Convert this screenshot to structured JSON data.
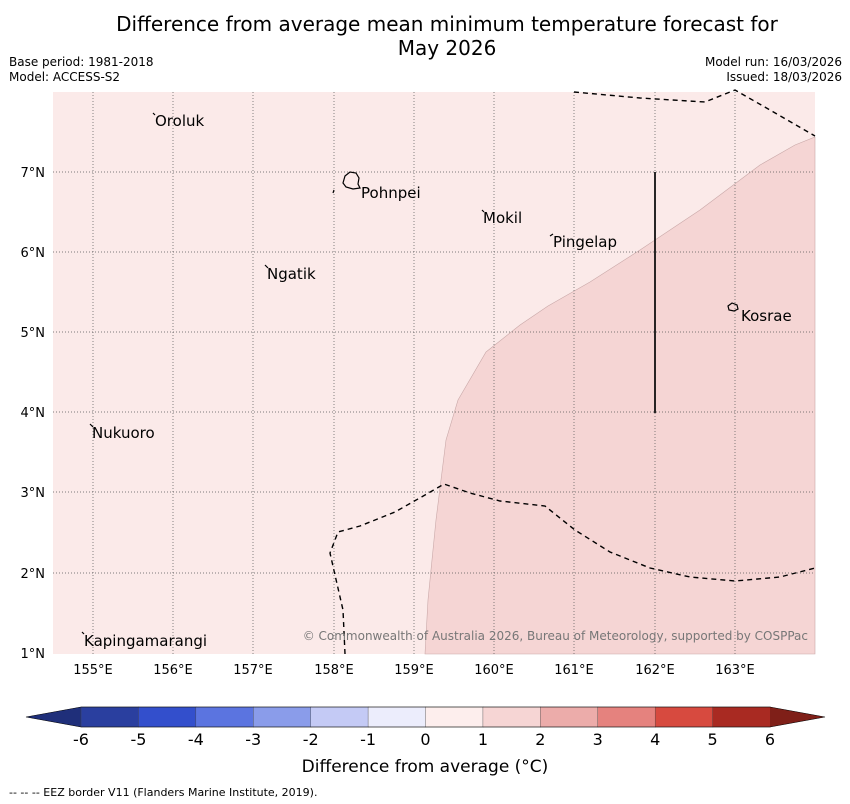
{
  "title": {
    "line1": "Difference from average mean minimum temperature forecast for",
    "line2": "May 2026"
  },
  "meta": {
    "base_period": "Base period: 1981-2018",
    "model": "Model: ACCESS-S2",
    "model_run": "Model run: 16/03/2026",
    "issued": "Issued: 18/03/2026"
  },
  "map": {
    "lon_labels": [
      "155°E",
      "156°E",
      "157°E",
      "158°E",
      "159°E",
      "160°E",
      "161°E",
      "162°E",
      "163°E"
    ],
    "lat_labels": [
      "7°N",
      "6°N",
      "5°N",
      "4°N",
      "3°N",
      "2°N",
      "1°N"
    ],
    "places": [
      "Oroluk",
      "Pohnpei",
      "Mokil",
      "Pingelap",
      "Ngatik",
      "Kosrae",
      "Nukuoro",
      "Kapingamarangi"
    ],
    "copyright": "© Commonwealth of Australia 2026, Bureau of Meteorology, supported by COSPPac",
    "colors": {
      "band_0_1": "#fbeae9",
      "band_1_2": "#f5d5d4",
      "coast": "#000000"
    }
  },
  "colorbar": {
    "tick_labels": [
      "-6",
      "-5",
      "-4",
      "-3",
      "-2",
      "-1",
      "0",
      "1",
      "2",
      "3",
      "4",
      "5",
      "6"
    ],
    "colors": [
      "#2a3f9f",
      "#334fcc",
      "#5b74e0",
      "#8a9cea",
      "#c4caf5",
      "#ecedfc",
      "#fdeeed",
      "#f6d5d4",
      "#ecacaa",
      "#e5827e",
      "#d74a3f",
      "#a92a22"
    ],
    "low_extend_color": "#1f2f7a",
    "high_extend_color": "#7f1f18",
    "title": "Difference from average (°C)"
  },
  "footnote": "--  --  -- EEZ border V11 (Flanders Marine Institute, 2019)."
}
